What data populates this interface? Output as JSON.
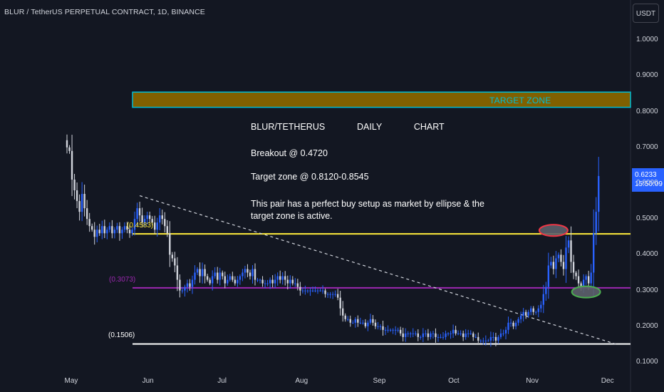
{
  "header": {
    "symbol_line": "BLUR / TetherUS PERPETUAL CONTRACT, 1D, BINANCE",
    "currency_button": "USDT"
  },
  "price_tag": {
    "price": "0.6233",
    "countdown": "15:50:09"
  },
  "annotations": {
    "title": "BLUR/TETHERUS      DAILY      CHART",
    "breakout": "Breakout @ 0.4720",
    "target": "Target zone @ 0.8120-0.8545",
    "note_line1": "This pair has a perfect buy setup as market by ellipse & the",
    "note_line2": "target zone is active.",
    "target_zone_label": "TARGET ZONE"
  },
  "levels": {
    "yellow": "(0.4583)",
    "magenta": "(0.3073)",
    "white": "(0.1506)"
  },
  "colors": {
    "background": "#131722",
    "up_candle": "#2962ff",
    "down_candle": "#d1d4dc",
    "yellow_line": "#ffeb3b",
    "magenta_line": "#9c27b0",
    "target_zone_fill": "#806000",
    "target_zone_border": "#00bcd4",
    "red_ellipse": "#f23645",
    "green_ellipse": "#4caf50"
  },
  "chart_data": {
    "type": "candlestick",
    "y_ticks": [
      "1.0000",
      "0.9000",
      "0.8000",
      "0.7000",
      "0.6000",
      "0.5000",
      "0.4000",
      "0.3000",
      "0.2000",
      "0.1000"
    ],
    "x_ticks": [
      "May",
      "Jun",
      "Jul",
      "Aug",
      "Sep",
      "Oct",
      "Nov",
      "Dec"
    ],
    "ylim": [
      0.08,
      1.1
    ],
    "target_zone": [
      0.812,
      0.8545
    ],
    "horizontal_levels": [
      0.4583,
      0.3073,
      0.1506
    ],
    "trendline": {
      "from": [
        "2023-05-29",
        0.565
      ],
      "to": [
        "2023-12-05",
        0.15
      ]
    },
    "ellipses": [
      {
        "date": "2023-11-10",
        "price": 0.468,
        "color": "red"
      },
      {
        "date": "2023-11-23",
        "price": 0.296,
        "color": "green"
      }
    ],
    "close_series": [
      [
        "2023-04-30",
        0.7
      ],
      [
        "2023-05-01",
        0.69
      ],
      [
        "2023-05-02",
        0.61
      ],
      [
        "2023-05-03",
        0.58
      ],
      [
        "2023-05-04",
        0.55
      ],
      [
        "2023-05-05",
        0.52
      ],
      [
        "2023-05-06",
        0.57
      ],
      [
        "2023-05-07",
        0.53
      ],
      [
        "2023-05-08",
        0.5
      ],
      [
        "2023-05-09",
        0.48
      ],
      [
        "2023-05-10",
        0.47
      ],
      [
        "2023-05-11",
        0.45
      ],
      [
        "2023-05-12",
        0.47
      ],
      [
        "2023-05-13",
        0.46
      ],
      [
        "2023-05-14",
        0.48
      ],
      [
        "2023-05-15",
        0.46
      ],
      [
        "2023-05-16",
        0.47
      ],
      [
        "2023-05-17",
        0.48
      ],
      [
        "2023-05-18",
        0.46
      ],
      [
        "2023-05-19",
        0.47
      ],
      [
        "2023-05-20",
        0.48
      ],
      [
        "2023-05-21",
        0.46
      ],
      [
        "2023-05-22",
        0.47
      ],
      [
        "2023-05-23",
        0.48
      ],
      [
        "2023-05-24",
        0.47
      ],
      [
        "2023-05-25",
        0.46
      ],
      [
        "2023-05-26",
        0.47
      ],
      [
        "2023-05-27",
        0.5
      ],
      [
        "2023-05-28",
        0.53
      ],
      [
        "2023-05-29",
        0.51
      ],
      [
        "2023-05-30",
        0.49
      ],
      [
        "2023-05-31",
        0.5
      ],
      [
        "2023-06-01",
        0.51
      ],
      [
        "2023-06-02",
        0.5
      ],
      [
        "2023-06-03",
        0.49
      ],
      [
        "2023-06-04",
        0.47
      ],
      [
        "2023-06-05",
        0.49
      ],
      [
        "2023-06-06",
        0.51
      ],
      [
        "2023-06-07",
        0.5
      ],
      [
        "2023-06-08",
        0.48
      ],
      [
        "2023-06-09",
        0.46
      ],
      [
        "2023-06-10",
        0.4
      ],
      [
        "2023-06-11",
        0.39
      ],
      [
        "2023-06-12",
        0.37
      ],
      [
        "2023-06-13",
        0.33
      ],
      [
        "2023-06-14",
        0.3
      ],
      [
        "2023-06-15",
        0.3
      ],
      [
        "2023-06-16",
        0.31
      ],
      [
        "2023-06-17",
        0.32
      ],
      [
        "2023-06-18",
        0.31
      ],
      [
        "2023-06-19",
        0.33
      ],
      [
        "2023-06-20",
        0.35
      ],
      [
        "2023-06-21",
        0.36
      ],
      [
        "2023-06-22",
        0.34
      ],
      [
        "2023-06-23",
        0.36
      ],
      [
        "2023-06-24",
        0.34
      ],
      [
        "2023-06-25",
        0.33
      ],
      [
        "2023-06-26",
        0.32
      ],
      [
        "2023-06-27",
        0.34
      ],
      [
        "2023-06-28",
        0.35
      ],
      [
        "2023-06-29",
        0.33
      ],
      [
        "2023-06-30",
        0.35
      ],
      [
        "2023-07-01",
        0.34
      ],
      [
        "2023-07-02",
        0.32
      ],
      [
        "2023-07-03",
        0.33
      ],
      [
        "2023-07-04",
        0.34
      ],
      [
        "2023-07-05",
        0.33
      ],
      [
        "2023-07-06",
        0.32
      ],
      [
        "2023-07-07",
        0.33
      ],
      [
        "2023-07-08",
        0.34
      ],
      [
        "2023-07-09",
        0.35
      ],
      [
        "2023-07-10",
        0.36
      ],
      [
        "2023-07-11",
        0.35
      ],
      [
        "2023-07-12",
        0.34
      ],
      [
        "2023-07-13",
        0.36
      ],
      [
        "2023-07-14",
        0.33
      ],
      [
        "2023-07-15",
        0.33
      ],
      [
        "2023-07-16",
        0.33
      ],
      [
        "2023-07-17",
        0.32
      ],
      [
        "2023-07-18",
        0.32
      ],
      [
        "2023-07-19",
        0.32
      ],
      [
        "2023-07-20",
        0.33
      ],
      [
        "2023-07-21",
        0.32
      ],
      [
        "2023-07-22",
        0.33
      ],
      [
        "2023-07-23",
        0.34
      ],
      [
        "2023-07-24",
        0.33
      ],
      [
        "2023-07-25",
        0.34
      ],
      [
        "2023-07-26",
        0.33
      ],
      [
        "2023-07-27",
        0.32
      ],
      [
        "2023-07-28",
        0.33
      ],
      [
        "2023-07-29",
        0.32
      ],
      [
        "2023-07-30",
        0.32
      ],
      [
        "2023-07-31",
        0.31
      ],
      [
        "2023-08-01",
        0.3
      ],
      [
        "2023-08-02",
        0.3
      ],
      [
        "2023-08-03",
        0.3
      ],
      [
        "2023-08-04",
        0.3
      ],
      [
        "2023-08-05",
        0.3
      ],
      [
        "2023-08-06",
        0.3
      ],
      [
        "2023-08-07",
        0.3
      ],
      [
        "2023-08-08",
        0.3
      ],
      [
        "2023-08-09",
        0.3
      ],
      [
        "2023-08-10",
        0.3
      ],
      [
        "2023-08-11",
        0.29
      ],
      [
        "2023-08-12",
        0.29
      ],
      [
        "2023-08-13",
        0.29
      ],
      [
        "2023-08-14",
        0.29
      ],
      [
        "2023-08-15",
        0.29
      ],
      [
        "2023-08-16",
        0.28
      ],
      [
        "2023-08-17",
        0.25
      ],
      [
        "2023-08-18",
        0.23
      ],
      [
        "2023-08-19",
        0.22
      ],
      [
        "2023-08-20",
        0.22
      ],
      [
        "2023-08-21",
        0.21
      ],
      [
        "2023-08-22",
        0.21
      ],
      [
        "2023-08-23",
        0.22
      ],
      [
        "2023-08-24",
        0.21
      ],
      [
        "2023-08-25",
        0.21
      ],
      [
        "2023-08-26",
        0.21
      ],
      [
        "2023-08-27",
        0.2
      ],
      [
        "2023-08-28",
        0.21
      ],
      [
        "2023-08-29",
        0.22
      ],
      [
        "2023-08-30",
        0.21
      ],
      [
        "2023-08-31",
        0.2
      ],
      [
        "2023-09-01",
        0.2
      ],
      [
        "2023-09-02",
        0.2
      ],
      [
        "2023-09-03",
        0.19
      ],
      [
        "2023-09-04",
        0.19
      ],
      [
        "2023-09-05",
        0.19
      ],
      [
        "2023-09-06",
        0.19
      ],
      [
        "2023-09-07",
        0.19
      ],
      [
        "2023-09-08",
        0.19
      ],
      [
        "2023-09-09",
        0.19
      ],
      [
        "2023-09-10",
        0.18
      ],
      [
        "2023-09-11",
        0.17
      ],
      [
        "2023-09-12",
        0.18
      ],
      [
        "2023-09-13",
        0.18
      ],
      [
        "2023-09-14",
        0.18
      ],
      [
        "2023-09-15",
        0.18
      ],
      [
        "2023-09-16",
        0.18
      ],
      [
        "2023-09-17",
        0.17
      ],
      [
        "2023-09-18",
        0.17
      ],
      [
        "2023-09-19",
        0.18
      ],
      [
        "2023-09-20",
        0.18
      ],
      [
        "2023-09-21",
        0.17
      ],
      [
        "2023-09-22",
        0.18
      ],
      [
        "2023-09-23",
        0.18
      ],
      [
        "2023-09-24",
        0.17
      ],
      [
        "2023-09-25",
        0.17
      ],
      [
        "2023-09-26",
        0.17
      ],
      [
        "2023-09-27",
        0.17
      ],
      [
        "2023-09-28",
        0.18
      ],
      [
        "2023-09-29",
        0.18
      ],
      [
        "2023-09-30",
        0.18
      ],
      [
        "2023-10-01",
        0.19
      ],
      [
        "2023-10-02",
        0.18
      ],
      [
        "2023-10-03",
        0.18
      ],
      [
        "2023-10-04",
        0.18
      ],
      [
        "2023-10-05",
        0.17
      ],
      [
        "2023-10-06",
        0.18
      ],
      [
        "2023-10-07",
        0.18
      ],
      [
        "2023-10-08",
        0.18
      ],
      [
        "2023-10-09",
        0.17
      ],
      [
        "2023-10-10",
        0.17
      ],
      [
        "2023-10-11",
        0.16
      ],
      [
        "2023-10-12",
        0.16
      ],
      [
        "2023-10-13",
        0.16
      ],
      [
        "2023-10-14",
        0.16
      ],
      [
        "2023-10-15",
        0.16
      ],
      [
        "2023-10-16",
        0.17
      ],
      [
        "2023-10-17",
        0.17
      ],
      [
        "2023-10-18",
        0.16
      ],
      [
        "2023-10-19",
        0.17
      ],
      [
        "2023-10-20",
        0.18
      ],
      [
        "2023-10-21",
        0.18
      ],
      [
        "2023-10-22",
        0.19
      ],
      [
        "2023-10-23",
        0.21
      ],
      [
        "2023-10-24",
        0.21
      ],
      [
        "2023-10-25",
        0.2
      ],
      [
        "2023-10-26",
        0.21
      ],
      [
        "2023-10-27",
        0.22
      ],
      [
        "2023-10-28",
        0.23
      ],
      [
        "2023-10-29",
        0.24
      ],
      [
        "2023-10-30",
        0.23
      ],
      [
        "2023-10-31",
        0.24
      ],
      [
        "2023-11-01",
        0.25
      ],
      [
        "2023-11-02",
        0.24
      ],
      [
        "2023-11-03",
        0.24
      ],
      [
        "2023-11-04",
        0.25
      ],
      [
        "2023-11-05",
        0.26
      ],
      [
        "2023-11-06",
        0.29
      ],
      [
        "2023-11-07",
        0.31
      ],
      [
        "2023-11-08",
        0.37
      ],
      [
        "2023-11-09",
        0.38
      ],
      [
        "2023-11-10",
        0.36
      ],
      [
        "2023-11-11",
        0.39
      ],
      [
        "2023-11-12",
        0.4
      ],
      [
        "2023-11-13",
        0.38
      ],
      [
        "2023-11-14",
        0.36
      ],
      [
        "2023-11-15",
        0.42
      ],
      [
        "2023-11-16",
        0.44
      ],
      [
        "2023-11-17",
        0.38
      ],
      [
        "2023-11-18",
        0.35
      ],
      [
        "2023-11-19",
        0.34
      ],
      [
        "2023-11-20",
        0.32
      ],
      [
        "2023-11-21",
        0.31
      ],
      [
        "2023-11-22",
        0.33
      ],
      [
        "2023-11-23",
        0.34
      ],
      [
        "2023-11-24",
        0.32
      ],
      [
        "2023-11-25",
        0.35
      ],
      [
        "2023-11-26",
        0.46
      ],
      [
        "2023-11-27",
        0.52
      ],
      [
        "2023-11-28",
        0.62
      ]
    ]
  }
}
